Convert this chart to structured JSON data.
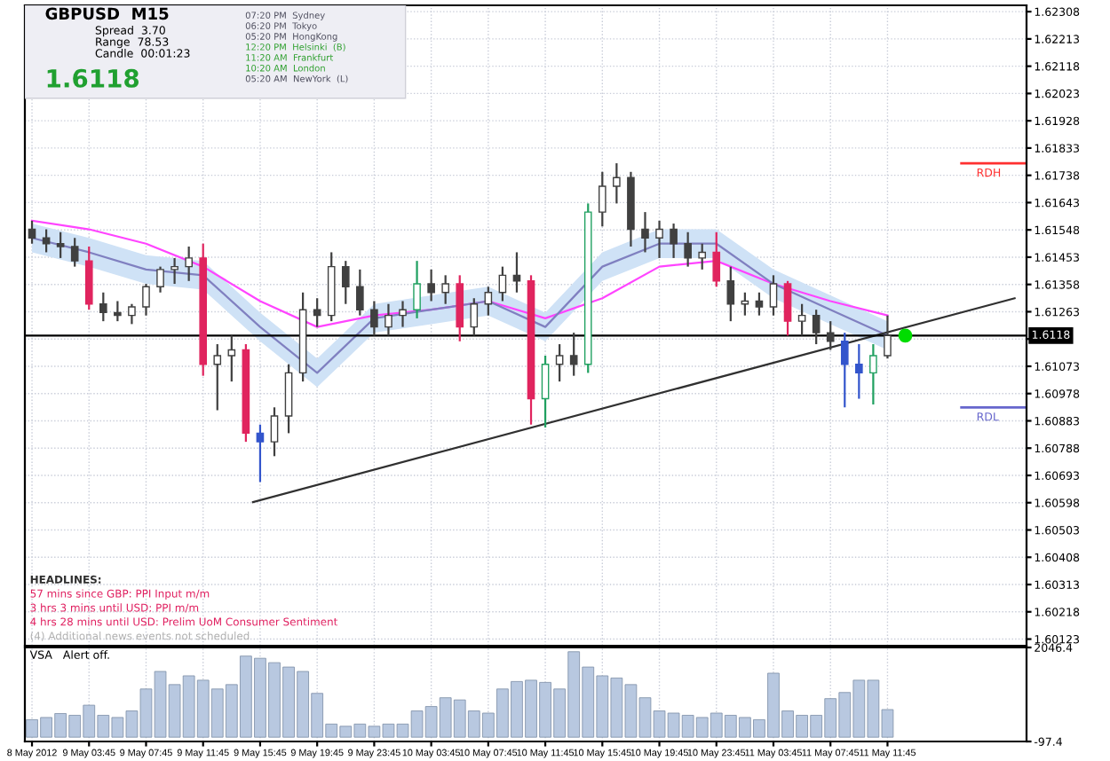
{
  "chart_data": [
    {
      "type": "candlestick",
      "title": "GBPUSD  M15",
      "x": [
        "2012-05-08T23:45",
        "2012-05-09T00:45",
        "2012-05-09T01:45",
        "2012-05-09T02:45",
        "2012-05-09T03:45",
        "2012-05-09T04:45",
        "2012-05-09T05:45",
        "2012-05-09T06:45",
        "2012-05-09T07:45",
        "2012-05-09T08:45",
        "2012-05-09T09:45",
        "2012-05-09T10:45",
        "2012-05-09T11:45",
        "2012-05-09T12:45",
        "2012-05-09T13:45",
        "2012-05-09T14:45",
        "2012-05-09T15:45",
        "2012-05-09T16:45",
        "2012-05-09T17:45",
        "2012-05-09T18:45",
        "2012-05-09T19:45",
        "2012-05-09T20:45",
        "2012-05-09T21:45",
        "2012-05-09T22:45",
        "2012-05-09T23:45",
        "2012-05-10T00:45",
        "2012-05-10T01:45",
        "2012-05-10T02:45",
        "2012-05-10T03:45",
        "2012-05-10T04:45",
        "2012-05-10T05:45",
        "2012-05-10T06:45",
        "2012-05-10T07:45",
        "2012-05-10T08:45",
        "2012-05-10T09:45",
        "2012-05-10T10:45",
        "2012-05-10T11:45",
        "2012-05-10T12:45",
        "2012-05-10T13:45",
        "2012-05-10T14:45",
        "2012-05-10T15:45",
        "2012-05-10T16:45",
        "2012-05-10T17:45",
        "2012-05-10T18:45",
        "2012-05-10T19:45",
        "2012-05-10T20:45",
        "2012-05-10T21:45",
        "2012-05-10T22:45",
        "2012-05-10T23:45",
        "2012-05-11T00:45",
        "2012-05-11T01:45",
        "2012-05-11T02:45",
        "2012-05-11T03:45",
        "2012-05-11T04:45",
        "2012-05-11T05:45",
        "2012-05-11T06:45",
        "2012-05-11T07:45",
        "2012-05-11T08:45",
        "2012-05-11T09:45",
        "2012-05-11T10:45",
        "2012-05-11T11:45"
      ],
      "ohlc": [
        [
          1.6155,
          1.6158,
          1.615,
          1.6152
        ],
        [
          1.6152,
          1.6155,
          1.6147,
          1.615
        ],
        [
          1.615,
          1.6154,
          1.6145,
          1.6149
        ],
        [
          1.6149,
          1.6152,
          1.6142,
          1.6144
        ],
        [
          1.6144,
          1.6149,
          1.6127,
          1.6129
        ],
        [
          1.6129,
          1.6133,
          1.6123,
          1.6126
        ],
        [
          1.6126,
          1.613,
          1.6123,
          1.6125
        ],
        [
          1.6125,
          1.6129,
          1.6122,
          1.6128
        ],
        [
          1.6128,
          1.6136,
          1.6125,
          1.6135
        ],
        [
          1.6135,
          1.6142,
          1.6133,
          1.6141
        ],
        [
          1.6141,
          1.6145,
          1.6136,
          1.6142
        ],
        [
          1.6142,
          1.6149,
          1.6137,
          1.6145
        ],
        [
          1.6145,
          1.615,
          1.6104,
          1.6108
        ],
        [
          1.6108,
          1.6115,
          1.6092,
          1.6111
        ],
        [
          1.6111,
          1.6118,
          1.6102,
          1.6113
        ],
        [
          1.6113,
          1.6115,
          1.6081,
          1.6084
        ],
        [
          1.6084,
          1.6087,
          1.6067,
          1.6081
        ],
        [
          1.6081,
          1.6093,
          1.6076,
          1.609
        ],
        [
          1.609,
          1.6108,
          1.6084,
          1.6105
        ],
        [
          1.6105,
          1.6133,
          1.6102,
          1.6127
        ],
        [
          1.6127,
          1.6131,
          1.6121,
          1.6125
        ],
        [
          1.6125,
          1.6147,
          1.6123,
          1.6142
        ],
        [
          1.6142,
          1.6144,
          1.6129,
          1.6135
        ],
        [
          1.6135,
          1.6141,
          1.6125,
          1.6127
        ],
        [
          1.6127,
          1.613,
          1.6118,
          1.6121
        ],
        [
          1.6121,
          1.6129,
          1.6118,
          1.6125
        ],
        [
          1.6125,
          1.613,
          1.6121,
          1.6127
        ],
        [
          1.6127,
          1.6144,
          1.6124,
          1.6136
        ],
        [
          1.6136,
          1.6141,
          1.613,
          1.6133
        ],
        [
          1.6133,
          1.6139,
          1.6129,
          1.6136
        ],
        [
          1.6136,
          1.6139,
          1.6116,
          1.6121
        ],
        [
          1.6121,
          1.6131,
          1.6118,
          1.6129
        ],
        [
          1.6129,
          1.6135,
          1.6125,
          1.6133
        ],
        [
          1.6133,
          1.6142,
          1.613,
          1.6139
        ],
        [
          1.6139,
          1.6147,
          1.6133,
          1.6137
        ],
        [
          1.6137,
          1.6139,
          1.6087,
          1.6096
        ],
        [
          1.6096,
          1.6111,
          1.6086,
          1.6108
        ],
        [
          1.6108,
          1.6115,
          1.6102,
          1.6111
        ],
        [
          1.6111,
          1.6119,
          1.6104,
          1.6108
        ],
        [
          1.6108,
          1.6164,
          1.6105,
          1.6161
        ],
        [
          1.6161,
          1.6175,
          1.6156,
          1.617
        ],
        [
          1.617,
          1.6178,
          1.6164,
          1.6173
        ],
        [
          1.6173,
          1.6175,
          1.6149,
          1.6155
        ],
        [
          1.6155,
          1.6161,
          1.6147,
          1.6152
        ],
        [
          1.6152,
          1.6158,
          1.6145,
          1.6155
        ],
        [
          1.6155,
          1.6157,
          1.6145,
          1.615
        ],
        [
          1.615,
          1.6154,
          1.6142,
          1.6145
        ],
        [
          1.6145,
          1.615,
          1.6141,
          1.6147
        ],
        [
          1.6147,
          1.6154,
          1.6135,
          1.6137
        ],
        [
          1.6137,
          1.6142,
          1.6123,
          1.6129
        ],
        [
          1.6129,
          1.6133,
          1.6125,
          1.613
        ],
        [
          1.613,
          1.6133,
          1.6125,
          1.6128
        ],
        [
          1.6128,
          1.6139,
          1.6125,
          1.6136
        ],
        [
          1.6136,
          1.6137,
          1.6118,
          1.6123
        ],
        [
          1.6123,
          1.6129,
          1.6118,
          1.6125
        ],
        [
          1.6125,
          1.6127,
          1.6115,
          1.6119
        ],
        [
          1.6119,
          1.6123,
          1.6113,
          1.6116
        ],
        [
          1.6116,
          1.6119,
          1.6093,
          1.6108
        ],
        [
          1.6108,
          1.6115,
          1.6096,
          1.6105
        ],
        [
          1.6105,
          1.6115,
          1.6094,
          1.6111
        ],
        [
          1.6111,
          1.6125,
          1.611,
          1.6118
        ]
      ],
      "colors": [
        "#404040",
        "#404040",
        "#404040",
        "#404040",
        "#e0245e",
        "#404040",
        "#404040",
        "#404040",
        "#404040",
        "#404040",
        "#404040",
        "#404040",
        "#e0245e",
        "#404040",
        "#404040",
        "#e0245e",
        "#3355cc",
        "#404040",
        "#404040",
        "#404040",
        "#404040",
        "#404040",
        "#404040",
        "#404040",
        "#404040",
        "#404040",
        "#404040",
        "#20a060",
        "#404040",
        "#404040",
        "#e0245e",
        "#404040",
        "#404040",
        "#404040",
        "#404040",
        "#e0245e",
        "#20a060",
        "#404040",
        "#404040",
        "#20a060",
        "#404040",
        "#404040",
        "#404040",
        "#404040",
        "#404040",
        "#404040",
        "#404040",
        "#404040",
        "#e0245e",
        "#404040",
        "#404040",
        "#404040",
        "#404040",
        "#e0245e",
        "#404040",
        "#404040",
        "#404040",
        "#3355cc",
        "#3355cc",
        "#20a060",
        "#404040"
      ],
      "series": [
        {
          "type": "line",
          "color": "#ff44ff",
          "x": [
            "2012-05-08T23:45",
            "2012-05-09T03:45",
            "2012-05-09T07:45",
            "2012-05-09T11:45",
            "2012-05-09T15:45",
            "2012-05-09T19:45",
            "2012-05-09T23:45",
            "2012-05-10T03:45",
            "2012-05-10T07:45",
            "2012-05-10T11:45",
            "2012-05-10T15:45",
            "2012-05-10T19:45",
            "2012-05-10T23:45",
            "2012-05-11T03:45",
            "2012-05-11T07:45",
            "2012-05-11T11:45"
          ],
          "values": [
            1.6158,
            1.6155,
            1.615,
            1.6142,
            1.613,
            1.6121,
            1.6125,
            1.6127,
            1.613,
            1.6124,
            1.6131,
            1.6142,
            1.6144,
            1.6136,
            1.613,
            1.6125
          ]
        },
        {
          "type": "line",
          "color": "#8080c0",
          "x": [
            "2012-05-08T23:45",
            "2012-05-09T03:45",
            "2012-05-09T07:45",
            "2012-05-09T11:45",
            "2012-05-09T15:45",
            "2012-05-09T19:45",
            "2012-05-09T23:45",
            "2012-05-10T03:45",
            "2012-05-10T07:45",
            "2012-05-10T11:45",
            "2012-05-10T15:45",
            "2012-05-10T19:45",
            "2012-05-10T23:45",
            "2012-05-11T03:45",
            "2012-05-11T07:45",
            "2012-05-11T11:45"
          ],
          "values": [
            1.6152,
            1.6147,
            1.6141,
            1.6139,
            1.6121,
            1.6105,
            1.6124,
            1.6127,
            1.613,
            1.6121,
            1.6142,
            1.615,
            1.615,
            1.6136,
            1.6127,
            1.6118
          ],
          "lower": [
            1.6147,
            1.6142,
            1.6136,
            1.6134,
            1.6116,
            1.61,
            1.6119,
            1.6122,
            1.6125,
            1.6116,
            1.6137,
            1.6145,
            1.6145,
            1.6131,
            1.6122,
            1.6113
          ],
          "upper": [
            1.6157,
            1.6152,
            1.6146,
            1.6144,
            1.6126,
            1.611,
            1.6129,
            1.6132,
            1.6135,
            1.6126,
            1.6147,
            1.6155,
            1.6155,
            1.6141,
            1.6132,
            1.6123
          ]
        },
        {
          "type": "line",
          "color": "#303030",
          "x": [
            "2012-05-09T15:15",
            "2012-05-11T20:40"
          ],
          "values": [
            1.606,
            1.6131
          ]
        },
        {
          "type": "scatter",
          "color": "#00dd00",
          "x": [
            "2012-05-11T13:00"
          ],
          "values": [
            1.6118
          ]
        }
      ],
      "xlim": [
        "2012-05-08T23:15",
        "2012-05-11T21:30"
      ],
      "ylim": [
        1.601,
        1.6233
      ],
      "xticks": [
        {
          "value": "2012-05-08T23:45",
          "label": null
        },
        {
          "value": "2012-05-09T03:45",
          "label": null
        },
        {
          "value": "2012-05-09T07:45",
          "label": null
        },
        {
          "value": "2012-05-09T11:45",
          "label": null
        },
        {
          "value": "2012-05-09T15:45",
          "label": null
        },
        {
          "value": "2012-05-09T19:45",
          "label": null
        },
        {
          "value": "2012-05-09T23:45",
          "label": null
        },
        {
          "value": "2012-05-10T03:45",
          "label": null
        },
        {
          "value": "2012-05-10T07:45",
          "label": null
        },
        {
          "value": "2012-05-10T11:45",
          "label": null
        },
        {
          "value": "2012-05-10T15:45",
          "label": null
        },
        {
          "value": "2012-05-10T19:45",
          "label": null
        },
        {
          "value": "2012-05-10T23:45",
          "label": null
        },
        {
          "value": "2012-05-11T03:45",
          "label": null
        },
        {
          "value": "2012-05-11T07:45",
          "label": null
        },
        {
          "value": "2012-05-11T11:45",
          "label": null
        }
      ],
      "yticks": [
        1.62308,
        1.62213,
        1.62118,
        1.62023,
        1.61928,
        1.61833,
        1.61738,
        1.61643,
        1.61548,
        1.61453,
        1.61358,
        1.61263,
        {
          "value": 1.61168,
          "label": null
        },
        1.61073,
        1.60978,
        1.60883,
        1.60788,
        1.60693,
        1.60598,
        1.60503,
        1.60408,
        1.60313,
        1.60218,
        1.60123
      ],
      "tick_labels": "y",
      "grid": true,
      "ref_lines": [
        {
          "axis": "y",
          "value": 1.6118,
          "label": "1.6118",
          "color": "#000000"
        },
        {
          "axis": "y",
          "value": 1.6178,
          "label": "RDH",
          "color": "#ff3030"
        },
        {
          "axis": "y",
          "value": 1.6093,
          "label": "RDL",
          "color": "#6666cc"
        }
      ],
      "annotations": [
        "Spread  3.70",
        "Range  78.53",
        "Candle  00:01:23",
        "1.6118",
        "07:20 PM  Sydney",
        "06:20 PM  Tokyo",
        "05:20 PM  HongKong",
        "12:20 PM  Helsinki  (B)",
        "11:20 AM  Frankfurt",
        "10:20 AM  London",
        "05:20 AM  NewYork  (L)",
        "HEADLINES:",
        "57 mins since GBP: PPI Input m/m",
        "3 hrs 3 mins until USD: PPI m/m",
        "4 hrs 28 mins until USD: Prelim UoM Consumer Sentiment",
        "(4) Additional news events not scheduled"
      ]
    },
    {
      "type": "bar",
      "color": "#b8c8e0",
      "x": [
        "2012-05-08T23:45",
        "2012-05-09T00:45",
        "2012-05-09T01:45",
        "2012-05-09T02:45",
        "2012-05-09T03:45",
        "2012-05-09T04:45",
        "2012-05-09T05:45",
        "2012-05-09T06:45",
        "2012-05-09T07:45",
        "2012-05-09T08:45",
        "2012-05-09T09:45",
        "2012-05-09T10:45",
        "2012-05-09T11:45",
        "2012-05-09T12:45",
        "2012-05-09T13:45",
        "2012-05-09T14:45",
        "2012-05-09T15:45",
        "2012-05-09T16:45",
        "2012-05-09T17:45",
        "2012-05-09T18:45",
        "2012-05-09T19:45",
        "2012-05-09T20:45",
        "2012-05-09T21:45",
        "2012-05-09T22:45",
        "2012-05-09T23:45",
        "2012-05-10T00:45",
        "2012-05-10T01:45",
        "2012-05-10T02:45",
        "2012-05-10T03:45",
        "2012-05-10T04:45",
        "2012-05-10T05:45",
        "2012-05-10T06:45",
        "2012-05-10T07:45",
        "2012-05-10T08:45",
        "2012-05-10T09:45",
        "2012-05-10T10:45",
        "2012-05-10T11:45",
        "2012-05-10T12:45",
        "2012-05-10T13:45",
        "2012-05-10T14:45",
        "2012-05-10T15:45",
        "2012-05-10T16:45",
        "2012-05-10T17:45",
        "2012-05-10T18:45",
        "2012-05-10T19:45",
        "2012-05-10T20:45",
        "2012-05-10T21:45",
        "2012-05-10T22:45",
        "2012-05-10T23:45",
        "2012-05-11T00:45",
        "2012-05-11T01:45",
        "2012-05-11T02:45",
        "2012-05-11T03:45",
        "2012-05-11T04:45",
        "2012-05-11T05:45",
        "2012-05-11T06:45",
        "2012-05-11T07:45",
        "2012-05-11T08:45",
        "2012-05-11T09:45",
        "2012-05-11T10:45",
        "2012-05-11T11:45"
      ],
      "values": [
        400,
        450,
        540,
        500,
        730,
        500,
        450,
        600,
        1100,
        1500,
        1200,
        1400,
        1300,
        1100,
        1200,
        1850,
        1800,
        1700,
        1600,
        1500,
        1000,
        300,
        250,
        300,
        250,
        300,
        300,
        600,
        700,
        900,
        850,
        600,
        550,
        1100,
        1270,
        1300,
        1250,
        1100,
        1950,
        1600,
        1400,
        1350,
        1200,
        900,
        600,
        550,
        500,
        450,
        550,
        500,
        450,
        400,
        1460,
        600,
        500,
        500,
        880,
        1020,
        1300,
        1300,
        630
      ],
      "xlim": [
        "2012-05-08T23:15",
        "2012-05-11T21:30"
      ],
      "ylim": [
        -97.4,
        2046.4
      ],
      "yticks": [
        2046.4,
        -97.4
      ],
      "xticks": [
        {
          "value": "2012-05-08T23:45",
          "label": "8 May 2012"
        },
        {
          "value": "2012-05-09T03:45",
          "label": "9 May 03:45"
        },
        {
          "value": "2012-05-09T07:45",
          "label": "9 May 07:45"
        },
        {
          "value": "2012-05-09T11:45",
          "label": "9 May 11:45"
        },
        {
          "value": "2012-05-09T15:45",
          "label": "9 May 15:45"
        },
        {
          "value": "2012-05-09T19:45",
          "label": "9 May 19:45"
        },
        {
          "value": "2012-05-09T23:45",
          "label": "9 May 23:45"
        },
        {
          "value": "2012-05-10T03:45",
          "label": "10 May 03:45"
        },
        {
          "value": "2012-05-10T07:45",
          "label": "10 May 07:45"
        },
        {
          "value": "2012-05-10T11:45",
          "label": "10 May 11:45"
        },
        {
          "value": "2012-05-10T15:45",
          "label": "10 May 15:45"
        },
        {
          "value": "2012-05-10T19:45",
          "label": "10 May 19:45"
        },
        {
          "value": "2012-05-10T23:45",
          "label": "10 May 23:45"
        },
        {
          "value": "2012-05-11T03:45",
          "label": "11 May 03:45"
        },
        {
          "value": "2012-05-11T07:45",
          "label": "11 May 07:45"
        },
        {
          "value": "2012-05-11T11:45",
          "label": "11 May 11:45"
        }
      ],
      "grid": true,
      "annotations": [
        "VSA   Alert off."
      ]
    }
  ]
}
